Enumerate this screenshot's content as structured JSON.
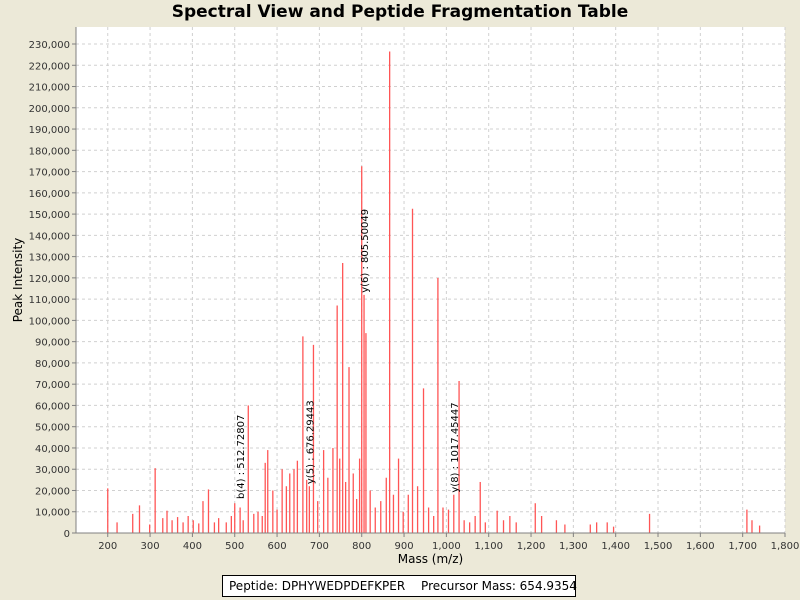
{
  "chart_data": {
    "type": "bar",
    "title": "Spectral View and Peptide Fragmentation Table",
    "xlabel": "Mass (m/z)",
    "ylabel": "Peak Intensity",
    "xlim": [
      125,
      1800
    ],
    "ylim": [
      0,
      238000
    ],
    "x_ticks": [
      200,
      300,
      400,
      500,
      600,
      700,
      800,
      900,
      1000,
      1100,
      1200,
      1300,
      1400,
      1500,
      1600,
      1700,
      1800
    ],
    "y_ticks": [
      0,
      10000,
      20000,
      30000,
      40000,
      50000,
      60000,
      70000,
      80000,
      90000,
      100000,
      110000,
      120000,
      130000,
      140000,
      150000,
      160000,
      170000,
      180000,
      190000,
      200000,
      210000,
      220000,
      230000
    ],
    "grid": true,
    "bar_color": "#ff5555",
    "peaks": [
      [
        200,
        21000
      ],
      [
        222,
        5000
      ],
      [
        259,
        9000
      ],
      [
        275,
        13000
      ],
      [
        299,
        4000
      ],
      [
        312,
        30500
      ],
      [
        330,
        7000
      ],
      [
        340,
        10500
      ],
      [
        352,
        6000
      ],
      [
        365,
        7500
      ],
      [
        378,
        5000
      ],
      [
        390,
        8000
      ],
      [
        402,
        6000
      ],
      [
        415,
        4500
      ],
      [
        425,
        15000
      ],
      [
        438,
        20500
      ],
      [
        452,
        5000
      ],
      [
        462,
        7000
      ],
      [
        480,
        5000
      ],
      [
        492,
        8000
      ],
      [
        500,
        14000
      ],
      [
        512.7,
        12000
      ],
      [
        520,
        6000
      ],
      [
        532,
        60000
      ],
      [
        545,
        9000
      ],
      [
        555,
        10000
      ],
      [
        565,
        8000
      ],
      [
        572,
        33000
      ],
      [
        578,
        39000
      ],
      [
        590,
        20000
      ],
      [
        600,
        11000
      ],
      [
        612,
        30000
      ],
      [
        622,
        22000
      ],
      [
        630,
        28000
      ],
      [
        640,
        30000
      ],
      [
        648,
        34000
      ],
      [
        661,
        92500
      ],
      [
        670,
        25000
      ],
      [
        676.3,
        22000
      ],
      [
        686,
        88500
      ],
      [
        696,
        15000
      ],
      [
        710,
        39000
      ],
      [
        720,
        26000
      ],
      [
        732,
        40000
      ],
      [
        742,
        107000
      ],
      [
        748,
        35000
      ],
      [
        755,
        127000
      ],
      [
        762,
        24000
      ],
      [
        770,
        78000
      ],
      [
        780,
        28000
      ],
      [
        788,
        16000
      ],
      [
        795,
        35000
      ],
      [
        800,
        172500
      ],
      [
        805.5,
        112000
      ],
      [
        810,
        94000
      ],
      [
        820,
        20000
      ],
      [
        832,
        12000
      ],
      [
        845,
        15000
      ],
      [
        858,
        26000
      ],
      [
        866,
        226500
      ],
      [
        875,
        18000
      ],
      [
        887,
        35000
      ],
      [
        898,
        10000
      ],
      [
        910,
        18000
      ],
      [
        920,
        152500
      ],
      [
        932,
        22000
      ],
      [
        946,
        68000
      ],
      [
        958,
        12000
      ],
      [
        970,
        8000
      ],
      [
        980,
        120000
      ],
      [
        992,
        12000
      ],
      [
        1005,
        11000
      ],
      [
        1017.5,
        18000
      ],
      [
        1030,
        71500
      ],
      [
        1042,
        6000
      ],
      [
        1055,
        5000
      ],
      [
        1068,
        8000
      ],
      [
        1080,
        24000
      ],
      [
        1092,
        5000
      ],
      [
        1120,
        10500
      ],
      [
        1135,
        6000
      ],
      [
        1150,
        8000
      ],
      [
        1165,
        5000
      ],
      [
        1210,
        14000
      ],
      [
        1225,
        8000
      ],
      [
        1260,
        6000
      ],
      [
        1280,
        4000
      ],
      [
        1340,
        4000
      ],
      [
        1355,
        5000
      ],
      [
        1380,
        5000
      ],
      [
        1395,
        3000
      ],
      [
        1480,
        9000
      ],
      [
        1710,
        11000
      ],
      [
        1722,
        6000
      ],
      [
        1740,
        3500
      ]
    ],
    "annotations": [
      {
        "text": "b(4) : 512.72807",
        "x": 512.7,
        "y": 16000
      },
      {
        "text": "y(5) : 676.29443",
        "x": 676.3,
        "y": 23000
      },
      {
        "text": "y(6) : 805.50049",
        "x": 805.5,
        "y": 113000
      },
      {
        "text": "y(8) : 1017.45447",
        "x": 1017.5,
        "y": 19000
      }
    ]
  },
  "info_box": {
    "peptide": "Peptide: DPHYWEDPDEFKPER",
    "precursor": "Precursor Mass: 654.9354"
  }
}
